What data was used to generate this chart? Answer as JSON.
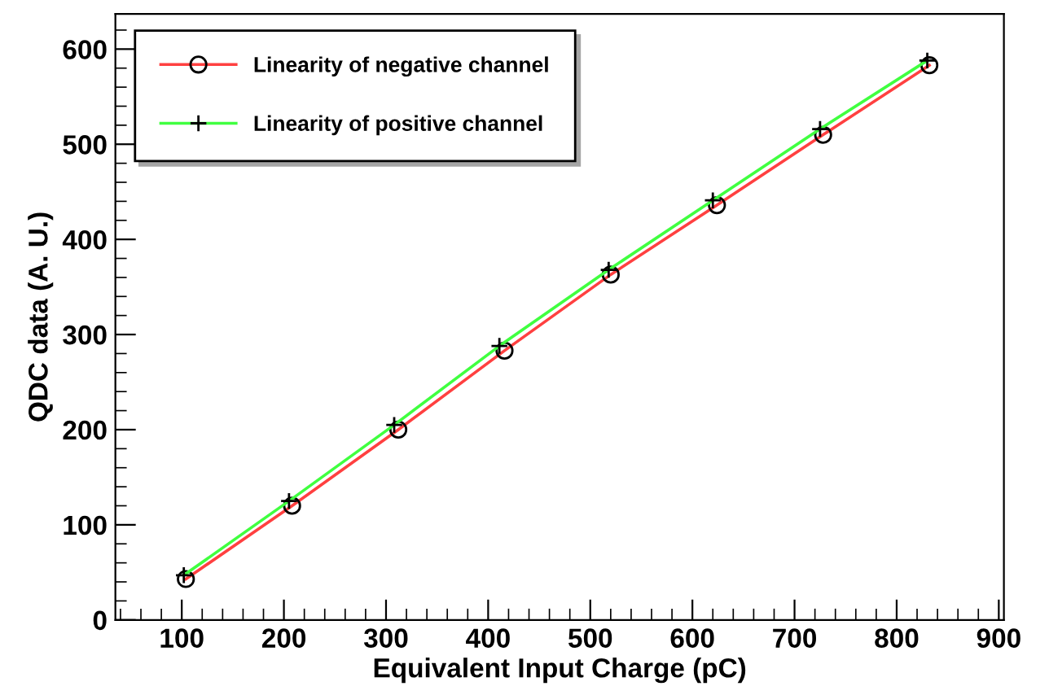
{
  "chart_data": {
    "type": "line",
    "xlabel": "Equivalent Input Charge (pC)",
    "ylabel": "QDC data (A. U.)",
    "xlim": [
      35,
      905
    ],
    "xticks": [
      100,
      200,
      300,
      400,
      500,
      600,
      700,
      800,
      900
    ],
    "ylim": [
      0,
      637
    ],
    "yticks": [
      0,
      100,
      200,
      300,
      400,
      500,
      600
    ],
    "grid": false,
    "legend": "top left",
    "line_style": "solid",
    "series": [
      {
        "name": "Linearity of negative channel",
        "color": "#ff4040",
        "marker": "circle",
        "x": [
          104,
          208,
          312,
          416,
          520,
          624,
          728,
          832
        ],
        "values": [
          43,
          120,
          200,
          283,
          363,
          436,
          510,
          583
        ]
      },
      {
        "name": "Linearity of positive channel",
        "color": "#40ff40",
        "marker": "cross",
        "x": [
          102,
          205,
          308,
          411,
          518,
          620,
          725,
          830
        ],
        "values": [
          47,
          125,
          205,
          288,
          368,
          441,
          516,
          588
        ]
      }
    ]
  }
}
